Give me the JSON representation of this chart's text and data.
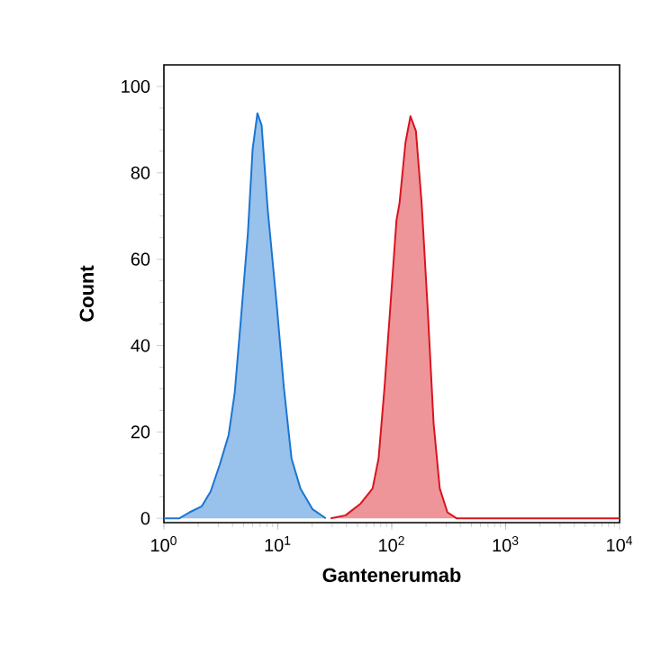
{
  "chart_data": {
    "type": "area",
    "xlabel": "Gantenerumab",
    "ylabel": "Count",
    "log": "x",
    "xlim": [
      1,
      10000
    ],
    "ylim": [
      -1,
      105
    ],
    "xticks": [
      {
        "value": 1,
        "label": "10$^{0}$"
      },
      {
        "value": 10,
        "label": "10$^{1}$"
      },
      {
        "value": 100,
        "label": "10$^{2}$"
      },
      {
        "value": 1000,
        "label": "10$^{3}$"
      },
      {
        "value": 10000,
        "label": "10$^{4}$"
      }
    ],
    "yticks": [
      0,
      20,
      40,
      60,
      80,
      100
    ],
    "grid": false,
    "marker": "none",
    "line_style": "solid",
    "series": [
      {
        "color": "#1a75d2",
        "x": [
          1,
          1.37,
          1.68,
          2.15,
          2.57,
          3.09,
          3.7,
          4.18,
          4.72,
          5.46,
          6.01,
          6.62,
          7.21,
          8.14,
          9.76,
          11.3,
          13.2,
          15.8,
          20.2,
          26.4
        ],
        "values": [
          0,
          0,
          1.4,
          2.8,
          6.2,
          12.4,
          19.3,
          29,
          45.5,
          66,
          85.5,
          93.8,
          91,
          71.7,
          49.7,
          30.3,
          13.8,
          6.9,
          2.1,
          0
        ]
      },
      {
        "color": "#d9141e",
        "x": [
          29.1,
          39.3,
          53.2,
          67.9,
          76.6,
          86.4,
          97.6,
          110,
          117,
          132,
          146,
          163,
          183,
          207,
          233,
          264,
          308,
          370,
          10000
        ],
        "values": [
          0,
          0.7,
          3.4,
          6.9,
          13.8,
          30.3,
          49.7,
          69,
          73,
          87,
          93.1,
          89.7,
          73,
          48.3,
          22,
          6.9,
          1.4,
          0,
          0
        ]
      }
    ]
  }
}
